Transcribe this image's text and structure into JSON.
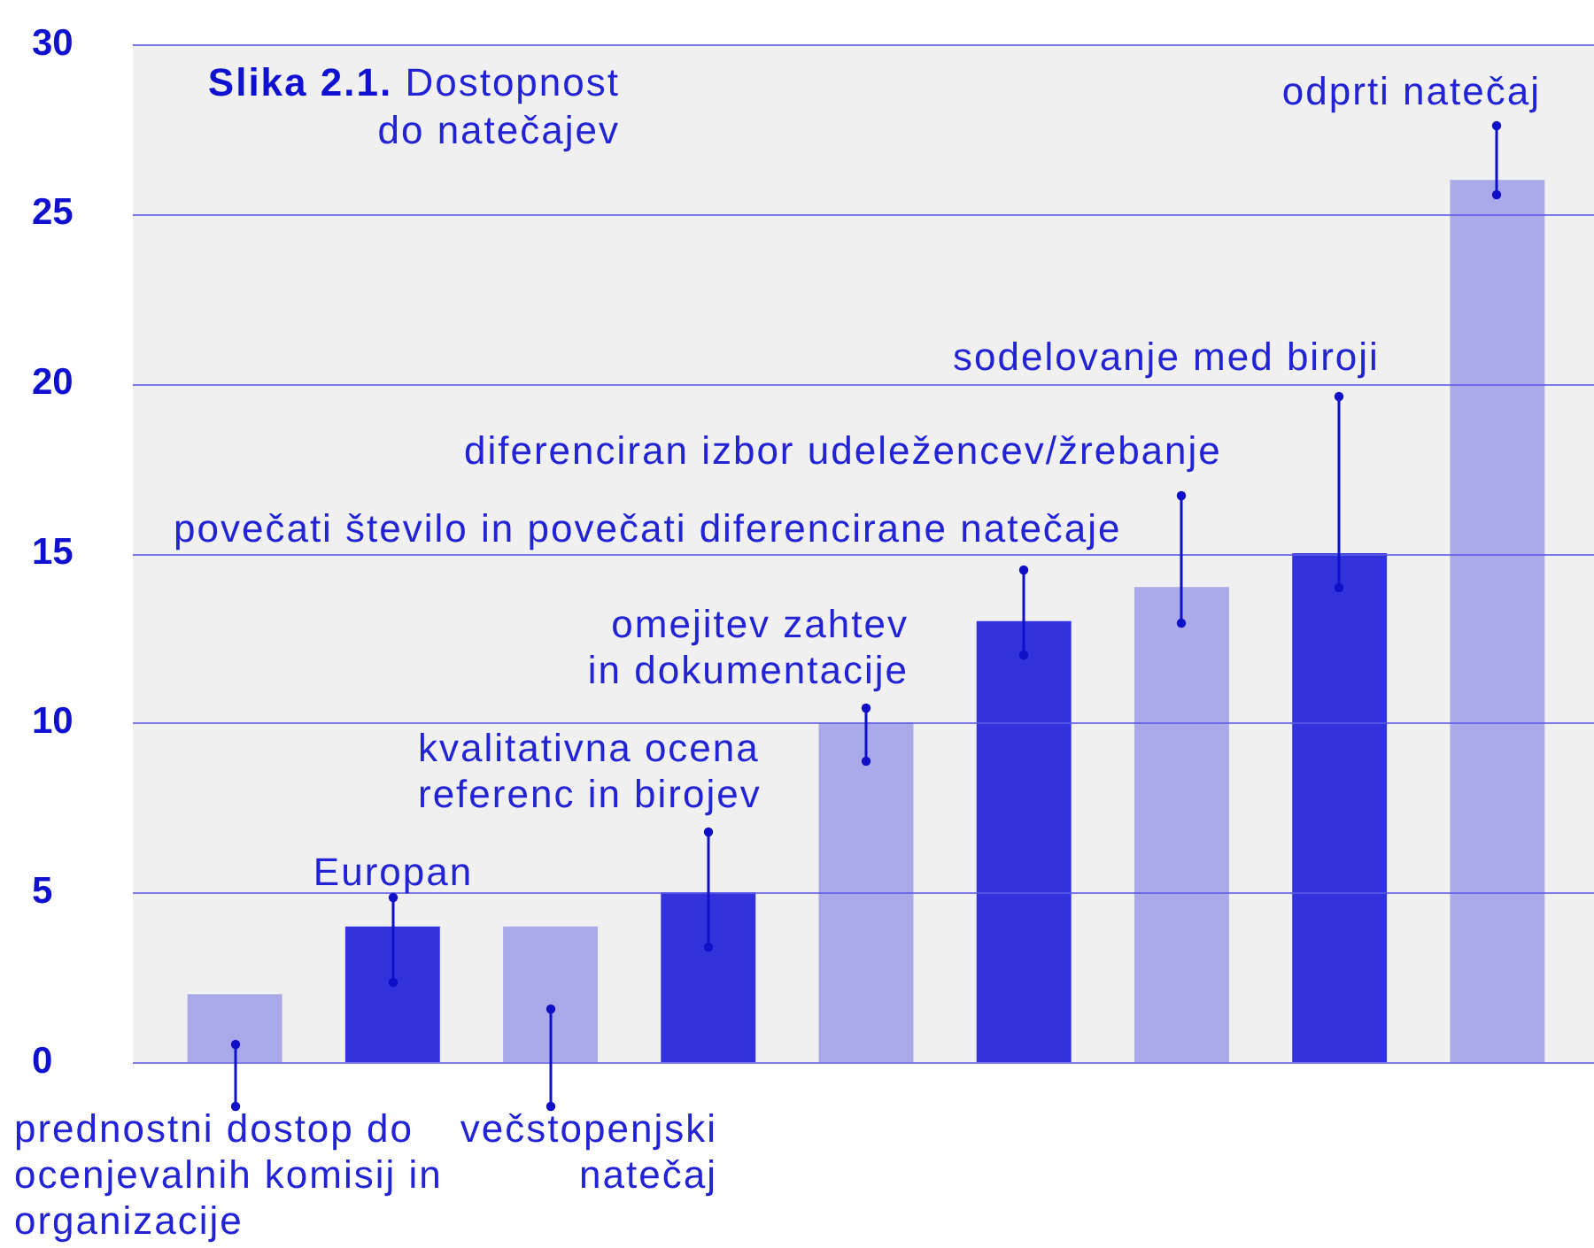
{
  "chart_data": {
    "type": "bar",
    "title": "Slika 2.1.",
    "subtitle": "Dostopnost do natečajev",
    "categories": [
      null,
      null,
      null,
      null,
      null,
      null,
      null,
      null,
      null
    ],
    "values": [
      2,
      4,
      4,
      5,
      10,
      13,
      14,
      15,
      26
    ],
    "colors": [
      "#aaaaea",
      "#3333dd",
      "#aaaaea",
      "#3333dd",
      "#aaaaea",
      "#3333dd",
      "#aaaaea",
      "#3333dd",
      "#aaaaea"
    ],
    "annotations": [
      "prednostni dostop do ocenjevalnih komisij in organizacije",
      "Europan",
      "večstopenjski natečaj",
      "kvalitativna ocena referenc in birojev",
      "omejitev zahtev in dokumentacije",
      "povečati število in povečati diferencirane natečaje",
      "diferenciran izbor udeležencev/žrebanje",
      "sodelovanje med biroji",
      "odprti natečaj"
    ],
    "ylim": [
      0,
      30
    ],
    "yticks": [
      0,
      5,
      10,
      15,
      20,
      25,
      30
    ],
    "grid": "y"
  }
}
